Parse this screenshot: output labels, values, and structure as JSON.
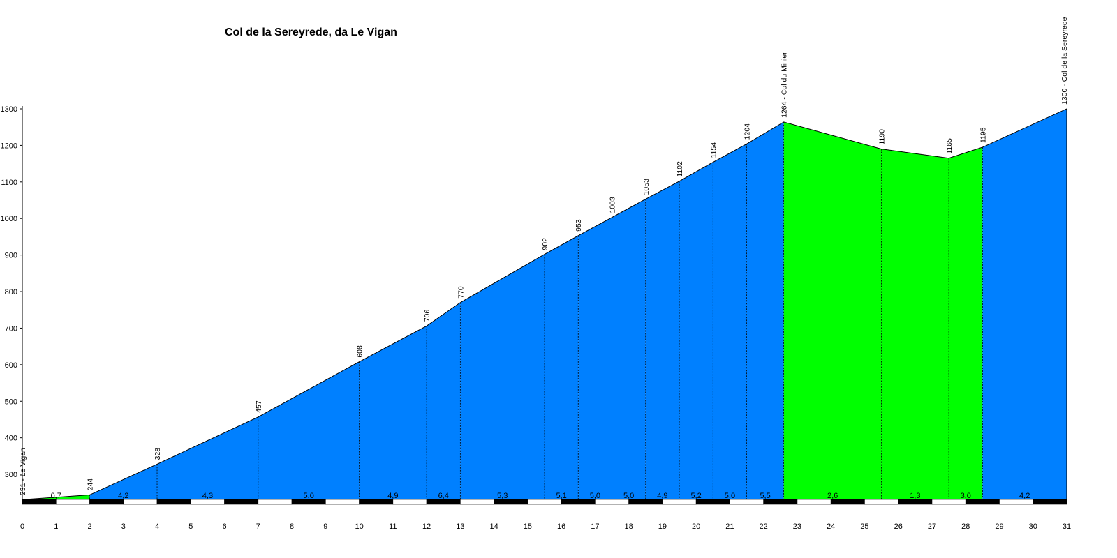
{
  "chart_data": {
    "type": "area",
    "title": "Col de la Sereyrede, da Le Vigan",
    "xlabel": "",
    "ylabel": "",
    "xlim": [
      0,
      31
    ],
    "ylim": [
      220,
      1300
    ],
    "x_ticks": [
      0,
      1,
      2,
      3,
      4,
      5,
      6,
      7,
      8,
      9,
      10,
      11,
      12,
      13,
      14,
      15,
      16,
      17,
      18,
      19,
      20,
      21,
      22,
      23,
      24,
      25,
      26,
      27,
      28,
      29,
      30,
      31
    ],
    "y_ticks": [
      300,
      400,
      500,
      600,
      700,
      800,
      900,
      1000,
      1100,
      1200,
      1300
    ],
    "points": [
      {
        "x": 0,
        "y": 231,
        "label": "231 - Le Vigan"
      },
      {
        "x": 2,
        "y": 244,
        "label": "244"
      },
      {
        "x": 4,
        "y": 328,
        "label": "328"
      },
      {
        "x": 7,
        "y": 457,
        "label": "457"
      },
      {
        "x": 10,
        "y": 608,
        "label": "608"
      },
      {
        "x": 12,
        "y": 706,
        "label": "706"
      },
      {
        "x": 13,
        "y": 770,
        "label": "770"
      },
      {
        "x": 15.5,
        "y": 902,
        "label": "902"
      },
      {
        "x": 16.5,
        "y": 953,
        "label": "953"
      },
      {
        "x": 17.5,
        "y": 1003,
        "label": "1003"
      },
      {
        "x": 18.5,
        "y": 1053,
        "label": "1053"
      },
      {
        "x": 19.5,
        "y": 1102,
        "label": "1102"
      },
      {
        "x": 20.5,
        "y": 1154,
        "label": "1154"
      },
      {
        "x": 21.5,
        "y": 1204,
        "label": "1204"
      },
      {
        "x": 22.6,
        "y": 1264,
        "label": "1264 - Col du Minier"
      },
      {
        "x": 25.5,
        "y": 1190,
        "label": "1190"
      },
      {
        "x": 27.5,
        "y": 1165,
        "label": "1165"
      },
      {
        "x": 28.5,
        "y": 1195,
        "label": "1195"
      },
      {
        "x": 31,
        "y": 1300,
        "label": "1300 - Col de la Sereyrede"
      }
    ],
    "segments": [
      {
        "from": 0,
        "to": 2,
        "gradient": "0,7",
        "color": "#00ff00"
      },
      {
        "from": 2,
        "to": 4,
        "gradient": "4,2",
        "color": "#0080ff"
      },
      {
        "from": 4,
        "to": 7,
        "gradient": "4,3",
        "color": "#0080ff"
      },
      {
        "from": 7,
        "to": 10,
        "gradient": "5,0",
        "color": "#0080ff"
      },
      {
        "from": 10,
        "to": 12,
        "gradient": "4,9",
        "color": "#0080ff"
      },
      {
        "from": 12,
        "to": 13,
        "gradient": "6,4",
        "color": "#0080ff"
      },
      {
        "from": 13,
        "to": 15.5,
        "gradient": "5,3",
        "color": "#0080ff"
      },
      {
        "from": 15.5,
        "to": 16.5,
        "gradient": "5,1",
        "color": "#0080ff"
      },
      {
        "from": 16.5,
        "to": 17.5,
        "gradient": "5,0",
        "color": "#0080ff"
      },
      {
        "from": 17.5,
        "to": 18.5,
        "gradient": "5,0",
        "color": "#0080ff"
      },
      {
        "from": 18.5,
        "to": 19.5,
        "gradient": "4,9",
        "color": "#0080ff"
      },
      {
        "from": 19.5,
        "to": 20.5,
        "gradient": "5,2",
        "color": "#0080ff"
      },
      {
        "from": 20.5,
        "to": 21.5,
        "gradient": "5,0",
        "color": "#0080ff"
      },
      {
        "from": 21.5,
        "to": 22.6,
        "gradient": "5,5",
        "color": "#0080ff"
      },
      {
        "from": 22.6,
        "to": 25.5,
        "gradient": "2,6",
        "color": "#00ff00"
      },
      {
        "from": 25.5,
        "to": 27.5,
        "gradient": "1,3",
        "color": "#00ff00"
      },
      {
        "from": 27.5,
        "to": 28.5,
        "gradient": "3,0",
        "color": "#00ff00"
      },
      {
        "from": 28.5,
        "to": 31,
        "gradient": "4,2",
        "color": "#0080ff"
      }
    ],
    "colors": {
      "climb": "#0080ff",
      "gentle": "#00ff00",
      "outline": "#000000"
    },
    "grid": false
  }
}
